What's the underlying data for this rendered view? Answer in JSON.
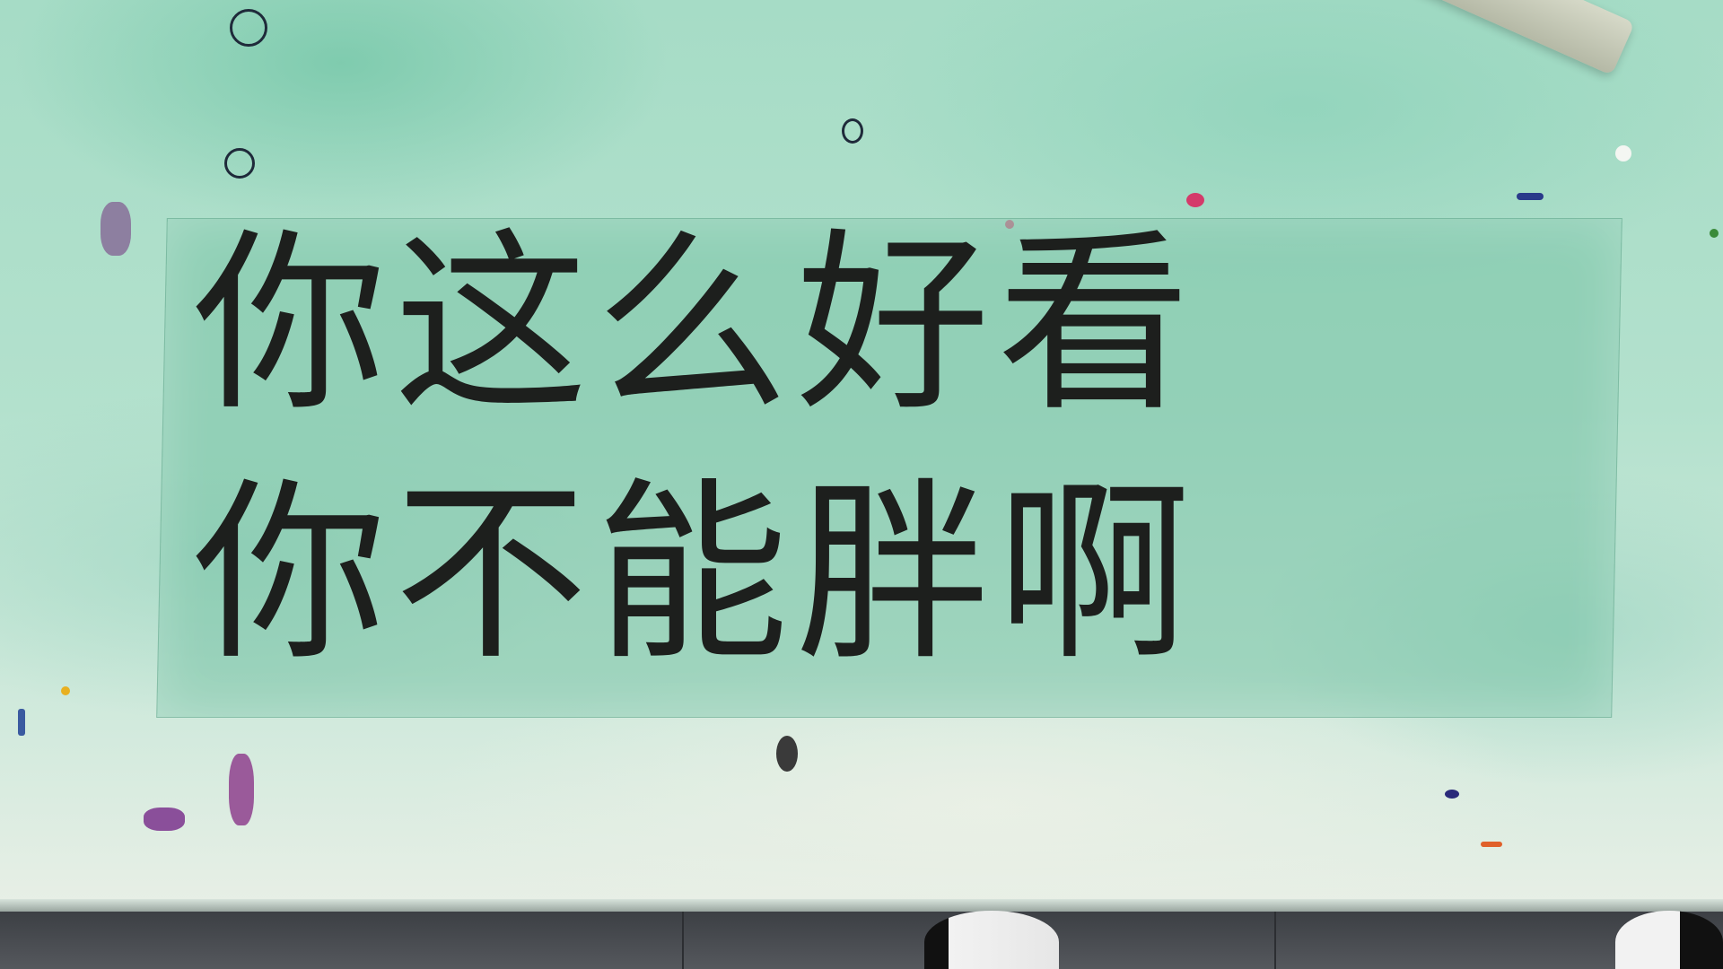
{
  "sign": {
    "line_1": "你这么好看",
    "line_2": "你不能胖啊"
  },
  "colors": {
    "tabletop": "#b3e1cd",
    "sticker": "#78c3a5",
    "text": "#1d1f1d",
    "floor": "#4a4d52"
  }
}
